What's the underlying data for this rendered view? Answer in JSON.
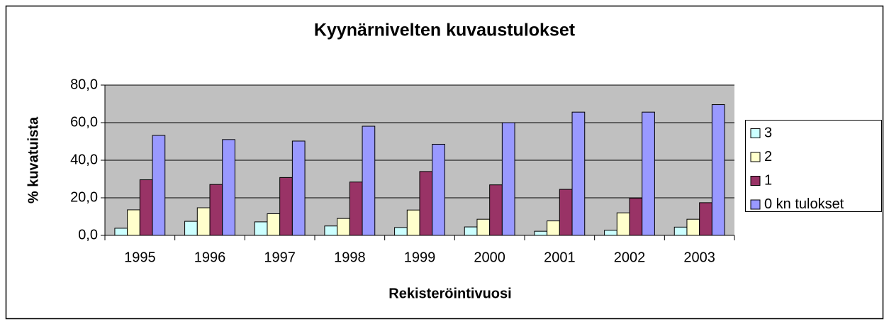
{
  "chart_data": {
    "type": "bar",
    "title": "Kyynärnivelten kuvaustulokset",
    "x_label": "Rekisteröintivuosi",
    "y_label": "% kuvatuista",
    "categories": [
      "1995",
      "1996",
      "1997",
      "1998",
      "1999",
      "2000",
      "2001",
      "2002",
      "2003"
    ],
    "series": [
      {
        "name": "3",
        "color": "#ccffff",
        "values": [
          3.8,
          7.5,
          7.2,
          5.0,
          4.2,
          4.5,
          2.2,
          2.7,
          4.4
        ]
      },
      {
        "name": "2",
        "color": "#ffffcc",
        "values": [
          13.6,
          14.7,
          11.5,
          9.0,
          13.5,
          8.6,
          7.7,
          12.0,
          8.6
        ]
      },
      {
        "name": "1",
        "color": "#993366",
        "values": [
          29.6,
          27.1,
          30.8,
          28.4,
          34.0,
          26.9,
          24.5,
          19.8,
          17.4
        ]
      },
      {
        "name": "0 kn tulokset",
        "color": "#9999ff",
        "values": [
          53.2,
          51.0,
          50.2,
          58.1,
          48.5,
          60.0,
          65.6,
          65.6,
          69.6
        ]
      }
    ],
    "ylim": [
      0,
      80
    ],
    "yticks": [
      {
        "value": 0,
        "label": "0,0"
      },
      {
        "value": 20,
        "label": "20,0"
      },
      {
        "value": 40,
        "label": "40,0"
      },
      {
        "value": 60,
        "label": "60,0"
      },
      {
        "value": 80,
        "label": "80,0"
      }
    ],
    "grid": true,
    "legend": "right",
    "plot_background": "#c0c0c0"
  }
}
